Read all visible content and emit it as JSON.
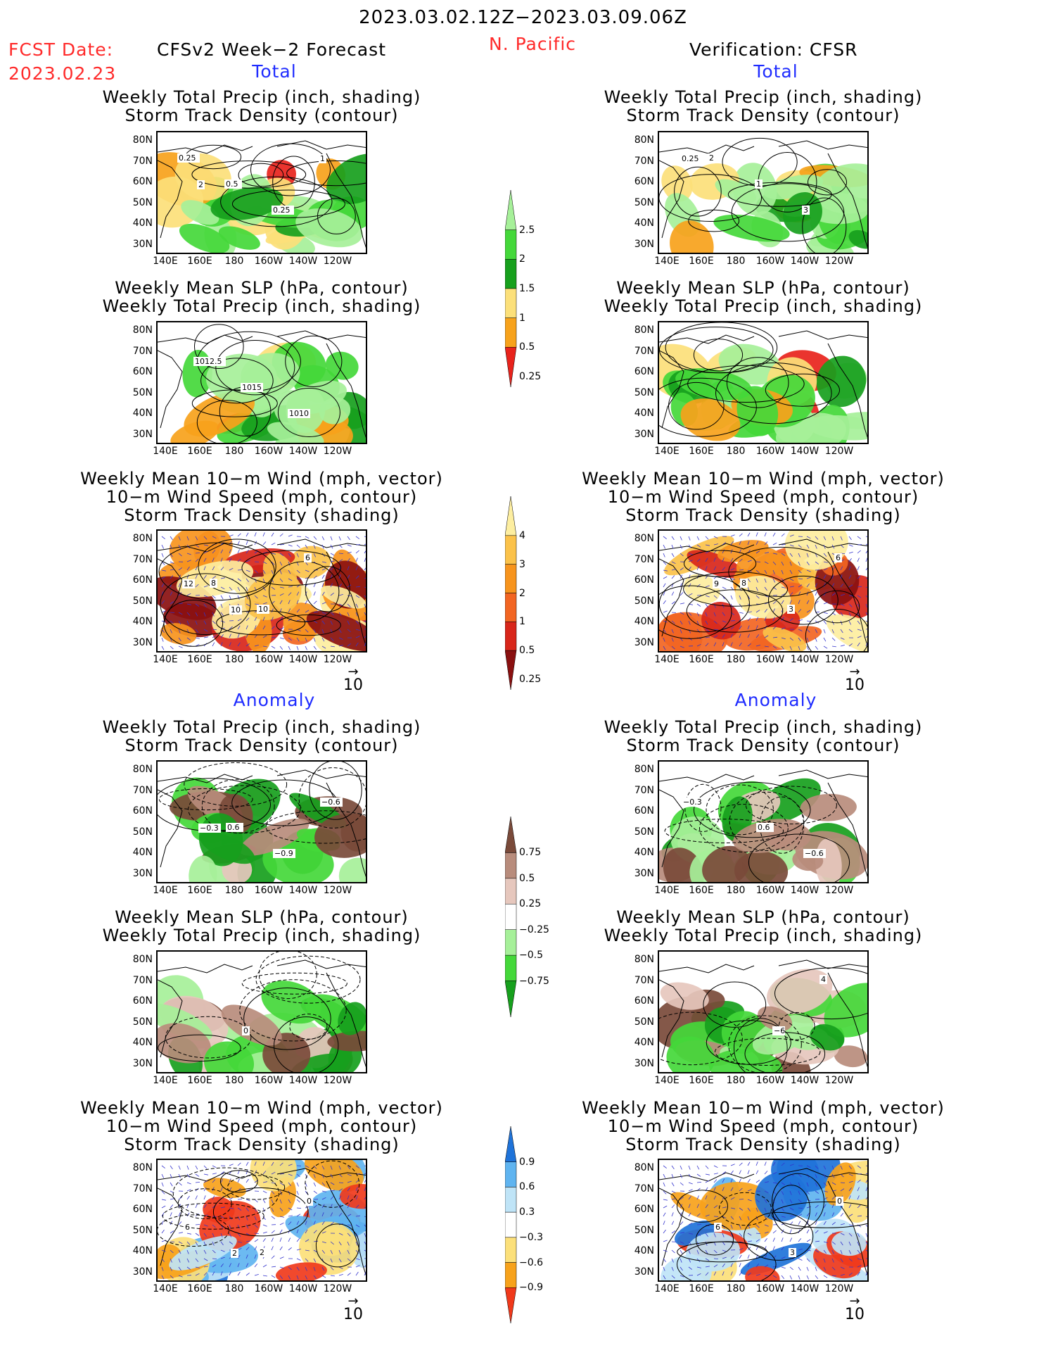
{
  "header": {
    "period": "2023.03.02.12Z−2023.03.09.06Z",
    "fcst_label": "FCST Date:",
    "fcst_date": "2023.02.23",
    "forecast_title": "CFSv2 Week−2 Forecast",
    "region": "N. Pacific",
    "verification_title": "Verification: CFSR"
  },
  "sections": {
    "total": "Total",
    "anomaly": "Anomaly"
  },
  "panel_titles": {
    "precip_storm": [
      "Weekly Total Precip (inch, shading)",
      "Storm Track Density (contour)"
    ],
    "slp_precip": [
      "Weekly Mean SLP (hPa, contour)",
      "Weekly Total Precip (inch, shading)"
    ],
    "wind_storm": [
      "Weekly Mean 10−m Wind (mph, vector)",
      "10−m Wind Speed (mph, contour)",
      "Storm Track Density (shading)"
    ]
  },
  "axes": {
    "lat_ticks": [
      "80N",
      "70N",
      "60N",
      "50N",
      "40N",
      "30N"
    ],
    "lon_ticks": [
      "140E",
      "160E",
      "180",
      "160W",
      "140W",
      "120W"
    ]
  },
  "vector_reference": "10",
  "colorbars": {
    "precip_total": {
      "labels": [
        "2.5",
        "2",
        "1.5",
        "1",
        "0.5",
        "0.25"
      ],
      "colors": [
        "#e8231c",
        "#f7a21b",
        "#fce07a",
        "#17a01d",
        "#44d83a",
        "#a6f099"
      ]
    },
    "storm_total": {
      "labels": [
        "4",
        "3",
        "2",
        "1",
        "0.5",
        "0.25"
      ],
      "colors": [
        "#8a1010",
        "#d8261a",
        "#f26522",
        "#f7941d",
        "#fbc24a",
        "#fdeea0"
      ]
    },
    "precip_anom": {
      "labels": [
        "0.75",
        "0.5",
        "0.25",
        "−0.25",
        "−0.5",
        "−0.75"
      ],
      "colors": [
        "#17a01d",
        "#44d83a",
        "#a6f099",
        "#ffffff",
        "#e6c7bd",
        "#b88c7c",
        "#7a4a3a"
      ]
    },
    "storm_anom": {
      "labels": [
        "0.9",
        "0.6",
        "0.3",
        "−0.3",
        "−0.6",
        "−0.9"
      ],
      "colors": [
        "#f0391b",
        "#f7a21b",
        "#fce07a",
        "#ffffff",
        "#bfe4f7",
        "#5fb4f0",
        "#1f73d9"
      ]
    }
  },
  "contour_labels": {
    "f_precip_total": [
      "0.25",
      "0.5",
      "0.25",
      "1",
      "2"
    ],
    "v_precip_total": [
      "2",
      "1",
      "3",
      "0.25"
    ],
    "f_slp_total": [
      "1012.5",
      "1015",
      "1010"
    ],
    "v_slp_total": [],
    "f_wind_total": [
      "8",
      "10",
      "6",
      "12",
      "10"
    ],
    "v_wind_total": [
      "8",
      "3",
      "6",
      "9"
    ],
    "f_precip_anom": [
      "0.6",
      "−0.9",
      "−0.6",
      "−0.3"
    ],
    "v_precip_anom": [
      "0.6",
      "−0.6",
      "−0.3"
    ],
    "f_slp_anom": [
      "0"
    ],
    "v_slp_anom": [
      "−6",
      "4"
    ],
    "f_wind_anom": [
      "2",
      "0",
      "6",
      "2"
    ],
    "v_wind_anom": [
      "3",
      "0",
      "6"
    ]
  }
}
